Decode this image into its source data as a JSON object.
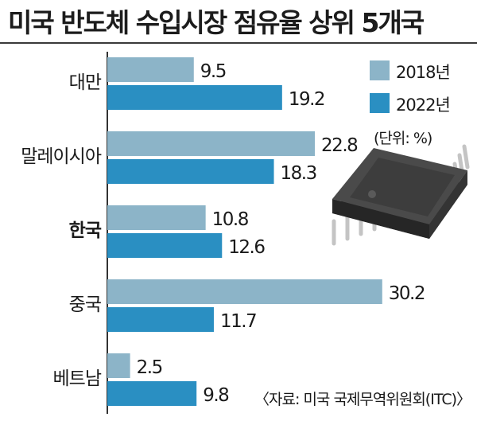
{
  "chart_data": {
    "type": "bar",
    "orientation": "horizontal",
    "title": "미국 반도체 수입시장 점유율 상위 5개국",
    "categories": [
      "대만",
      "말레이시아",
      "한국",
      "중국",
      "베트남"
    ],
    "highlight_category": "한국",
    "series": [
      {
        "name": "2018년",
        "values": [
          9.5,
          22.8,
          10.8,
          30.2,
          2.5
        ],
        "color": "#8cb4c8"
      },
      {
        "name": "2022년",
        "values": [
          19.2,
          18.3,
          12.6,
          11.7,
          9.8
        ],
        "color": "#2a8fc2"
      }
    ],
    "value_labels": [
      [
        "9.5",
        "22.8",
        "10.8",
        "30.2",
        "2.5"
      ],
      [
        "19.2",
        "18.3",
        "12.6",
        "11.7",
        "9.8"
      ]
    ],
    "unit_note": "(단위: %)",
    "source": "〈자료: 미국 국제무역위원회(ITC)〉",
    "xlim": [
      0,
      32
    ],
    "grid": false,
    "legend_position": "top-right"
  },
  "colors": {
    "axis": "#333333",
    "chip_body": "#4a4a4a",
    "chip_top": "#3d3d3d",
    "chip_pins": "#c4c4c4"
  },
  "icons": [
    "semiconductor-chip-icon"
  ]
}
